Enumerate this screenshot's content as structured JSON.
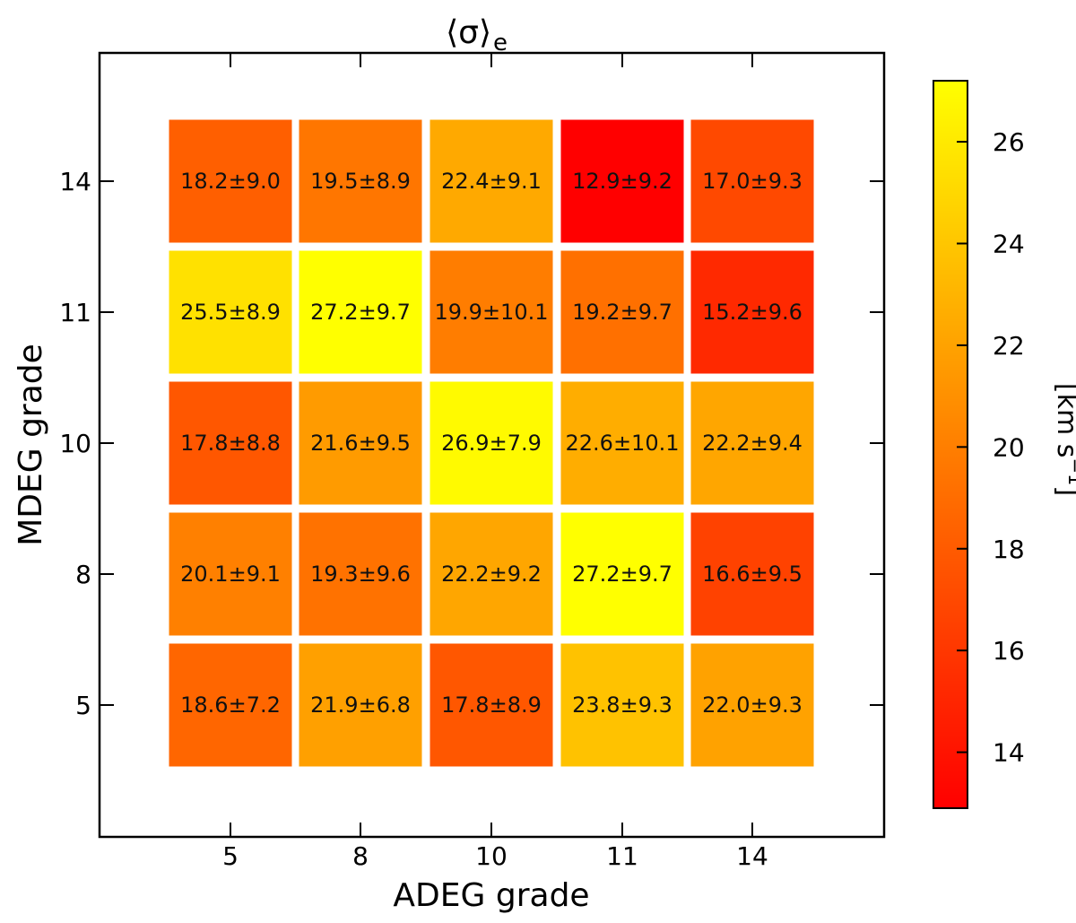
{
  "chart_data": {
    "type": "heatmap",
    "title": "⟨σ⟩",
    "title_subscript": "e",
    "xlabel": "ADEG grade",
    "ylabel": "MDEG grade",
    "x_categories": [
      "5",
      "8",
      "10",
      "11",
      "14"
    ],
    "y_categories": [
      "5",
      "8",
      "10",
      "11",
      "14"
    ],
    "cells": [
      [
        {
          "value": 18.6,
          "label": "18.6±7.2"
        },
        {
          "value": 21.9,
          "label": "21.9±6.8"
        },
        {
          "value": 17.8,
          "label": "17.8±8.9"
        },
        {
          "value": 23.8,
          "label": "23.8±9.3"
        },
        {
          "value": 22.0,
          "label": "22.0±9.3"
        }
      ],
      [
        {
          "value": 20.1,
          "label": "20.1±9.1"
        },
        {
          "value": 19.3,
          "label": "19.3±9.6"
        },
        {
          "value": 22.2,
          "label": "22.2±9.2"
        },
        {
          "value": 27.2,
          "label": "27.2±9.7"
        },
        {
          "value": 16.6,
          "label": "16.6±9.5"
        }
      ],
      [
        {
          "value": 17.8,
          "label": "17.8±8.8"
        },
        {
          "value": 21.6,
          "label": "21.6±9.5"
        },
        {
          "value": 26.9,
          "label": "26.9±7.9"
        },
        {
          "value": 22.6,
          "label": "22.6±10.1"
        },
        {
          "value": 22.2,
          "label": "22.2±9.4"
        }
      ],
      [
        {
          "value": 25.5,
          "label": "25.5±8.9"
        },
        {
          "value": 27.2,
          "label": "27.2±9.7"
        },
        {
          "value": 19.9,
          "label": "19.9±10.1"
        },
        {
          "value": 19.2,
          "label": "19.2±9.7"
        },
        {
          "value": 15.2,
          "label": "15.2±9.6"
        }
      ],
      [
        {
          "value": 18.2,
          "label": "18.2±9.0"
        },
        {
          "value": 19.5,
          "label": "19.5±8.9"
        },
        {
          "value": 22.4,
          "label": "22.4±9.1"
        },
        {
          "value": 12.9,
          "label": "12.9±9.2"
        },
        {
          "value": 17.0,
          "label": "17.0±9.3"
        }
      ]
    ],
    "colorbar": {
      "label": "[km s",
      "label_superscript": "−1",
      "label_close": "]",
      "min": 12.9,
      "max": 27.2,
      "ticks": [
        "14",
        "16",
        "18",
        "20",
        "22",
        "24",
        "26"
      ],
      "colormap": "autumn",
      "color_low": "#ff0000",
      "color_high": "#ffff00"
    },
    "grid": false
  }
}
